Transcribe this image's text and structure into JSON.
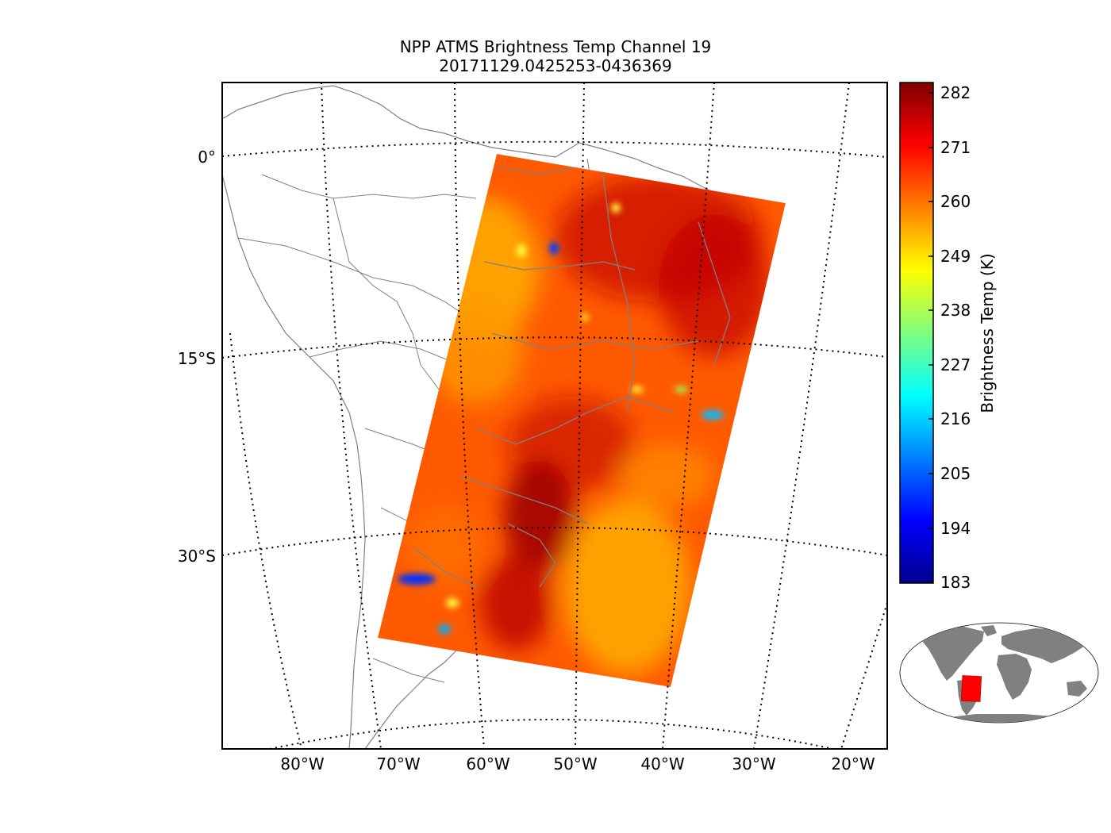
{
  "title": {
    "line1": "NPP ATMS Brightness Temp Channel 19",
    "line2": "20171129.0425253-0436369"
  },
  "map": {
    "lat_labels": [
      "0°",
      "15°S",
      "30°S"
    ],
    "lon_labels": [
      "80°W",
      "70°W",
      "60°W",
      "50°W",
      "40°W",
      "30°W",
      "20°W"
    ],
    "swath_colors": {
      "base": "#ff5a00",
      "hot": "#b20000",
      "warm": "#ffaa00",
      "cold_spot": "#0040ff"
    },
    "coastline_color": "#808080"
  },
  "colorbar": {
    "label": "Brightness Temp (K)",
    "ticks": [
      "282",
      "271",
      "260",
      "249",
      "238",
      "227",
      "216",
      "205",
      "194",
      "183"
    ],
    "colormap": [
      "#00008f",
      "#0000ff",
      "#0080ff",
      "#00ffff",
      "#80ff80",
      "#ffff00",
      "#ff8000",
      "#ff0000",
      "#800000"
    ]
  },
  "inset": {
    "land_color": "#808080",
    "swath_color": "#ff0000"
  }
}
